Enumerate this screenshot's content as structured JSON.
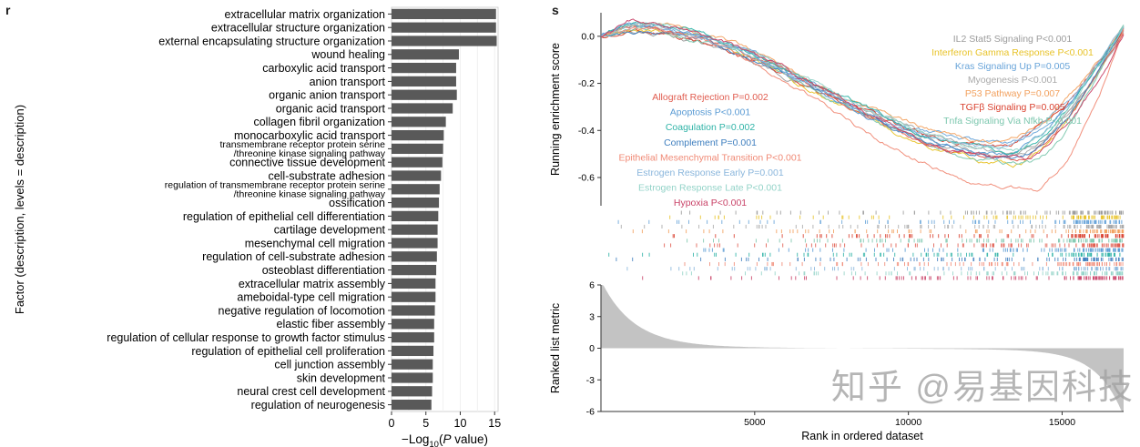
{
  "watermark": "知乎 @易基因科技",
  "panel_r": {
    "label": "r"
  },
  "panel_s": {
    "label": "s"
  },
  "chart_data": [
    {
      "type": "bar",
      "panel": "r",
      "orientation": "horizontal",
      "title": "",
      "xlabel": "-Log10(P value)",
      "xlabel_parts": [
        {
          "t": "−Log"
        },
        {
          "t": "10",
          "sub": true
        },
        {
          "t": "("
        },
        {
          "t": "P",
          "italic": true
        },
        {
          "t": " value)"
        }
      ],
      "ylabel": "Factor (description, levels = description)",
      "xlim": [
        0,
        15.5
      ],
      "x_ticks": [
        0,
        5,
        10,
        15
      ],
      "bar_color": "#595959",
      "categories": [
        "extracellular matrix organization",
        "extracellular structure organization",
        "external encapsulating structure organization",
        "wound healing",
        "carboxylic acid transport",
        "anion transport",
        "organic anion transport",
        "organic acid transport",
        "collagen fibril organization",
        "monocarboxylic acid transport",
        "transmembrane receptor protein serine\n/threonine kinase signaling pathway",
        "connective tissue development",
        "cell-substrate adhesion",
        "regulation of transmembrane receptor protein serine\n/threonine kinase signaling pathway",
        "ossification",
        "regulation of epithelial cell differentiation",
        "cartilage development",
        "mesenchymal cell migration",
        "regulation of cell-substrate adhesion",
        "osteoblast differentiation",
        "extracellular matrix assembly",
        "ameboidal-type cell migration",
        "negative regulation of locomotion",
        "elastic fiber assembly",
        "regulation of cellular response to growth factor stimulus",
        "regulation of epithelial cell proliferation",
        "cell junction assembly",
        "skin development",
        "neural crest cell development",
        "regulation of neurogenesis"
      ],
      "values": [
        15.2,
        15.2,
        15.3,
        9.8,
        9.4,
        9.4,
        9.5,
        8.9,
        7.9,
        7.6,
        7.5,
        7.4,
        7.2,
        7.0,
        6.9,
        6.8,
        6.7,
        6.7,
        6.6,
        6.5,
        6.4,
        6.4,
        6.3,
        6.2,
        6.2,
        6.1,
        6.0,
        6.0,
        5.9,
        5.8
      ]
    },
    {
      "type": "line",
      "subtype": "gsea",
      "panel": "s",
      "xlabel": "Rank in ordered dataset",
      "ylabel_top": "Running enrichment score",
      "ylabel_bottom": "Ranked list metric",
      "xlim": [
        0,
        17000
      ],
      "x_ticks": [
        5000,
        10000,
        15000
      ],
      "enrichment_ylim": [
        -0.72,
        0.1
      ],
      "enrichment_yticks": [
        0.0,
        -0.2,
        -0.4,
        -0.6
      ],
      "metric_ylim": [
        -6,
        6
      ],
      "metric_yticks": [
        6,
        3,
        0,
        -3,
        -6
      ],
      "metric_color": "#c3c3c3",
      "series": [
        {
          "label": "IL2 Stat5 Signaling P<0.001",
          "color": "#9b9b9b",
          "legend": "right",
          "min_es": -0.5,
          "min_at": 0.79,
          "end_es": 0.02
        },
        {
          "label": "Interferon Gamma Response P<0.001",
          "color": "#e8c32a",
          "legend": "right",
          "min_es": -0.54,
          "min_at": 0.8,
          "end_es": 0.05
        },
        {
          "label": "Kras Signaling Up P=0.005",
          "color": "#68a4d9",
          "legend": "right",
          "min_es": -0.46,
          "min_at": 0.78,
          "end_es": 0.02
        },
        {
          "label": "Myogenesis P<0.001",
          "color": "#a9a9a9",
          "legend": "right",
          "min_es": -0.49,
          "min_at": 0.8,
          "end_es": 0.03
        },
        {
          "label": "P53 Pathway P=0.007",
          "color": "#f2a15f",
          "legend": "right",
          "min_es": -0.45,
          "min_at": 0.77,
          "end_es": 0.04
        },
        {
          "label": "TGFβ Signaling P=0.005",
          "color": "#d9402e",
          "legend": "right",
          "min_es": -0.47,
          "min_at": 0.76,
          "end_es": 0.03
        },
        {
          "label": "Tnfa Signaling Via Nfkb P<0.001",
          "color": "#7cc7ae",
          "legend": "right",
          "min_es": -0.55,
          "min_at": 0.82,
          "end_es": 0.05
        },
        {
          "label": "Allograft Rejection P=0.002",
          "color": "#e05c4f",
          "legend": "left",
          "min_es": -0.52,
          "min_at": 0.8,
          "end_es": 0.02
        },
        {
          "label": "Apoptosis P<0.001",
          "color": "#5a9bd4",
          "legend": "left",
          "min_es": -0.5,
          "min_at": 0.78,
          "end_es": 0.03
        },
        {
          "label": "Coagulation P=0.002",
          "color": "#2fb3a7",
          "legend": "left",
          "min_es": -0.49,
          "min_at": 0.79,
          "end_es": 0.04
        },
        {
          "label": "Complement P=0.001",
          "color": "#3f7fbf",
          "legend": "left",
          "min_es": -0.51,
          "min_at": 0.8,
          "end_es": 0.02
        },
        {
          "label": "Epithelial Mesenchymal Transition P<0.001",
          "color": "#f08a76",
          "legend": "left",
          "min_es": -0.66,
          "min_at": 0.83,
          "end_es": 0.01
        },
        {
          "label": "Estrogen Response Early P=0.001",
          "color": "#8ab6dc",
          "legend": "left",
          "min_es": -0.47,
          "min_at": 0.77,
          "end_es": 0.03
        },
        {
          "label": "Estrogen Response Late P<0.001",
          "color": "#93d3c8",
          "legend": "left",
          "min_es": -0.48,
          "min_at": 0.8,
          "end_es": 0.04
        },
        {
          "label": "Hypoxia P<0.001",
          "color": "#c94368",
          "legend": "left",
          "min_es": -0.53,
          "min_at": 0.81,
          "end_es": 0.02
        }
      ]
    }
  ]
}
